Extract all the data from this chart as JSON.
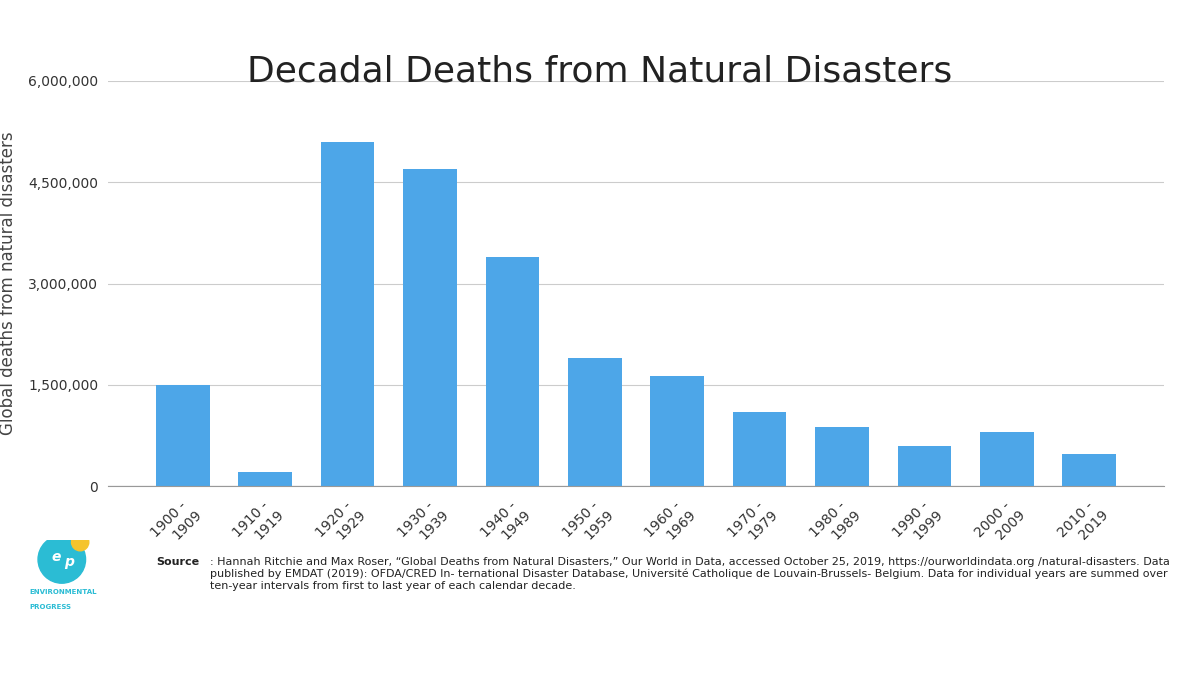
{
  "title": "Decadal Deaths from Natural Disasters",
  "ylabel": "Global deaths from natural disasters",
  "categories": [
    "1900 - \n1909",
    "1910 - \n1919",
    "1920 - \n1929",
    "1930 - \n1939",
    "1940 - \n1949",
    "1950 - \n1959",
    "1960 - \n1969",
    "1970 - \n1979",
    "1980 - \n1989",
    "1990 - \n1999",
    "2000 - \n2009",
    "2010 - \n2019"
  ],
  "values": [
    1500000,
    210000,
    5100000,
    4700000,
    3400000,
    1900000,
    1630000,
    1100000,
    870000,
    600000,
    800000,
    480000
  ],
  "bar_color": "#4da6e8",
  "ylim": [
    0,
    6000000
  ],
  "yticks": [
    0,
    1500000,
    3000000,
    4500000,
    6000000
  ],
  "ytick_labels": [
    "0",
    "1,500,000",
    "3,000,000",
    "4,500,000",
    "6,000,000"
  ],
  "background_color": "#ffffff",
  "outer_bg_color": "#f0f0f0",
  "source_bold": "Source",
  "source_text": ": Hannah Ritchie and Max Roser, “Global Deaths from Natural Disasters,” Our World in Data, accessed October 25, 2019, https://ourworldindata.org /natural-disasters. Data published by EMDAT (2019): OFDA/CRED In- ternational Disaster Database, Université Catholique de Louvain-Brussels- Belgium. Data for individual years are summed over ten-year intervals from first to last year of each calendar decade.",
  "logo_text_line1": "ENVIRONMENTAL",
  "logo_text_line2": "PROGRESS",
  "title_fontsize": 26,
  "ylabel_fontsize": 12,
  "tick_fontsize": 10,
  "source_fontsize": 8
}
